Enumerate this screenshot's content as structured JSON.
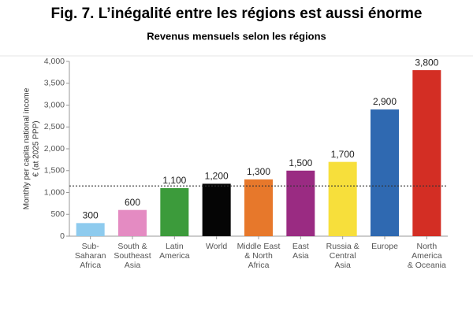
{
  "chart_data": {
    "type": "bar",
    "title": "Fig. 7. L’inégalité entre les régions est aussi énorme",
    "subtitle": "Revenus mensuels selon les régions",
    "y_label": [
      "Monthly per capita national income",
      "€ (at 2025 PPP)"
    ],
    "categories": [
      [
        "Sub-",
        "Saharan",
        "Africa"
      ],
      [
        "South &",
        "Southeast",
        "Asia"
      ],
      [
        "Latin",
        "America"
      ],
      [
        "World"
      ],
      [
        "Middle East",
        "& North",
        "Africa"
      ],
      [
        "East",
        "Asia"
      ],
      [
        "Russia &",
        "Central",
        "Asia"
      ],
      [
        "Europe"
      ],
      [
        "North",
        "America",
        "& Oceania"
      ]
    ],
    "values": [
      300,
      600,
      1100,
      1200,
      1300,
      1500,
      1700,
      2900,
      3800
    ],
    "value_labels": [
      "300",
      "600",
      "1,100",
      "1,200",
      "1,300",
      "1,500",
      "1,700",
      "2,900",
      "3,800"
    ],
    "colors": [
      "#8ecbee",
      "#e48bc2",
      "#3c9b3b",
      "#050505",
      "#e7782b",
      "#9a2b82",
      "#f7df3b",
      "#2f69b1",
      "#d32e24"
    ],
    "ylim": [
      0,
      4000
    ],
    "yticks": [
      0,
      500,
      {
        "value": 1000,
        "label": "1,000"
      },
      {
        "value": 1500,
        "label": "1,500"
      },
      {
        "value": 2000,
        "label": "2,000"
      },
      {
        "value": 2500,
        "label": "2,500"
      },
      {
        "value": 3000,
        "label": "3,000"
      },
      {
        "value": 3500,
        "label": "3,500"
      },
      {
        "value": 4000,
        "label": "4,000"
      }
    ],
    "hline": 1150,
    "grid": false
  }
}
